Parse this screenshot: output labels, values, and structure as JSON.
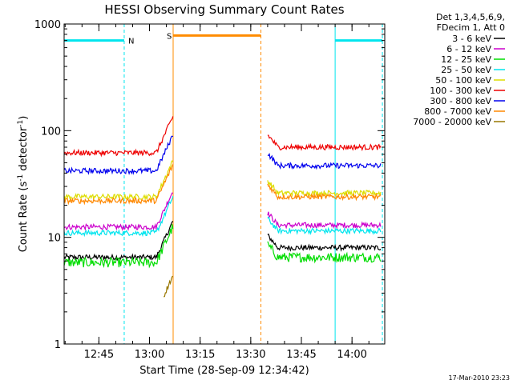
{
  "chart_data": {
    "type": "line",
    "title": "HESSI Observing Summary Count Rates",
    "xlabel": "Start Time (28-Sep-09 12:34:42)",
    "ylabel": "Count Rate (s⁻¹ detector⁻¹)",
    "ylabel_main": "Count Rate (s",
    "ylabel_sup1": "-1",
    "ylabel_mid": " detector",
    "ylabel_sup2": "-1",
    "ylabel_end": ")",
    "y_scale": "log",
    "ylim": [
      1,
      1000
    ],
    "xlim": [
      "12:34:42",
      "14:09:42"
    ],
    "x_ticks": [
      "12:45",
      "13:00",
      "13:15",
      "13:30",
      "13:45",
      "14:00"
    ],
    "y_ticks": [
      "1",
      "10",
      "100",
      "1000"
    ],
    "legend_header": [
      "Det 1,3,4,5,6,9,",
      "FDecim 1, Att 0"
    ],
    "legend_position": "right",
    "markers": [
      {
        "label": "N",
        "color": "#00e5ee"
      },
      {
        "label": "S",
        "color": "#ff8c00"
      }
    ],
    "night_intervals": [
      [
        "12:34:42",
        "12:52:30"
      ],
      [
        "13:55:00",
        "14:09:00"
      ]
    ],
    "saa_interval": [
      "13:07:00",
      "13:33:00"
    ],
    "gap": [
      "13:07:00",
      "13:35:00"
    ],
    "series": [
      {
        "name": "3 - 6 keV",
        "color": "#000000",
        "level_before": 6.5,
        "level_after": 8
      },
      {
        "name": "6 - 12 keV",
        "color": "#cc00cc",
        "level_before": 12.5,
        "level_after": 13
      },
      {
        "name": "12 - 25 keV",
        "color": "#00dd00",
        "level_before": 5.8,
        "level_after": 6.5
      },
      {
        "name": "25 - 50 keV",
        "color": "#00e5ee",
        "level_before": 11,
        "level_after": 11.5
      },
      {
        "name": "50 - 100 keV",
        "color": "#dddd00",
        "level_before": 24,
        "level_after": 26
      },
      {
        "name": "100 - 300 keV",
        "color": "#ee0000",
        "level_before": 62,
        "level_after": 70
      },
      {
        "name": "300 - 800 keV",
        "color": "#0000ee",
        "level_before": 42,
        "level_after": 47
      },
      {
        "name": "800 - 7000 keV",
        "color": "#ff8800",
        "level_before": 22,
        "level_after": 24
      },
      {
        "name": "7000 - 20000 keV",
        "color": "#997700",
        "level_before": 2,
        "level_after": null
      }
    ]
  },
  "footer_date": "17-Mar-2010 23:23"
}
